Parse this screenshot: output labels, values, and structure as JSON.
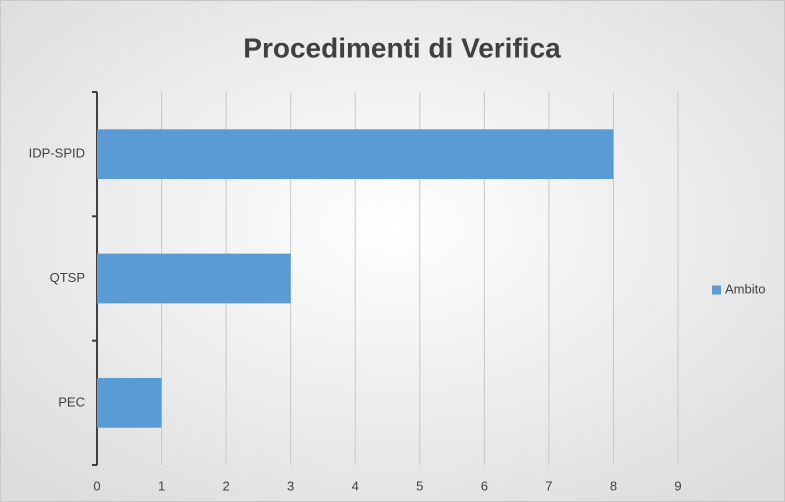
{
  "chart_data": {
    "type": "bar",
    "orientation": "horizontal",
    "title": "Procedimenti di Verifica",
    "categories": [
      "IDP-SPID",
      "QTSP",
      "PEC"
    ],
    "series": [
      {
        "name": "Ambito",
        "color": "#5b9bd5",
        "values": [
          8,
          3,
          1
        ]
      }
    ],
    "xlim": [
      0,
      9
    ],
    "xticks": [
      0,
      1,
      2,
      3,
      4,
      5,
      6,
      7,
      8,
      9
    ],
    "grid": true,
    "legend": "right"
  }
}
